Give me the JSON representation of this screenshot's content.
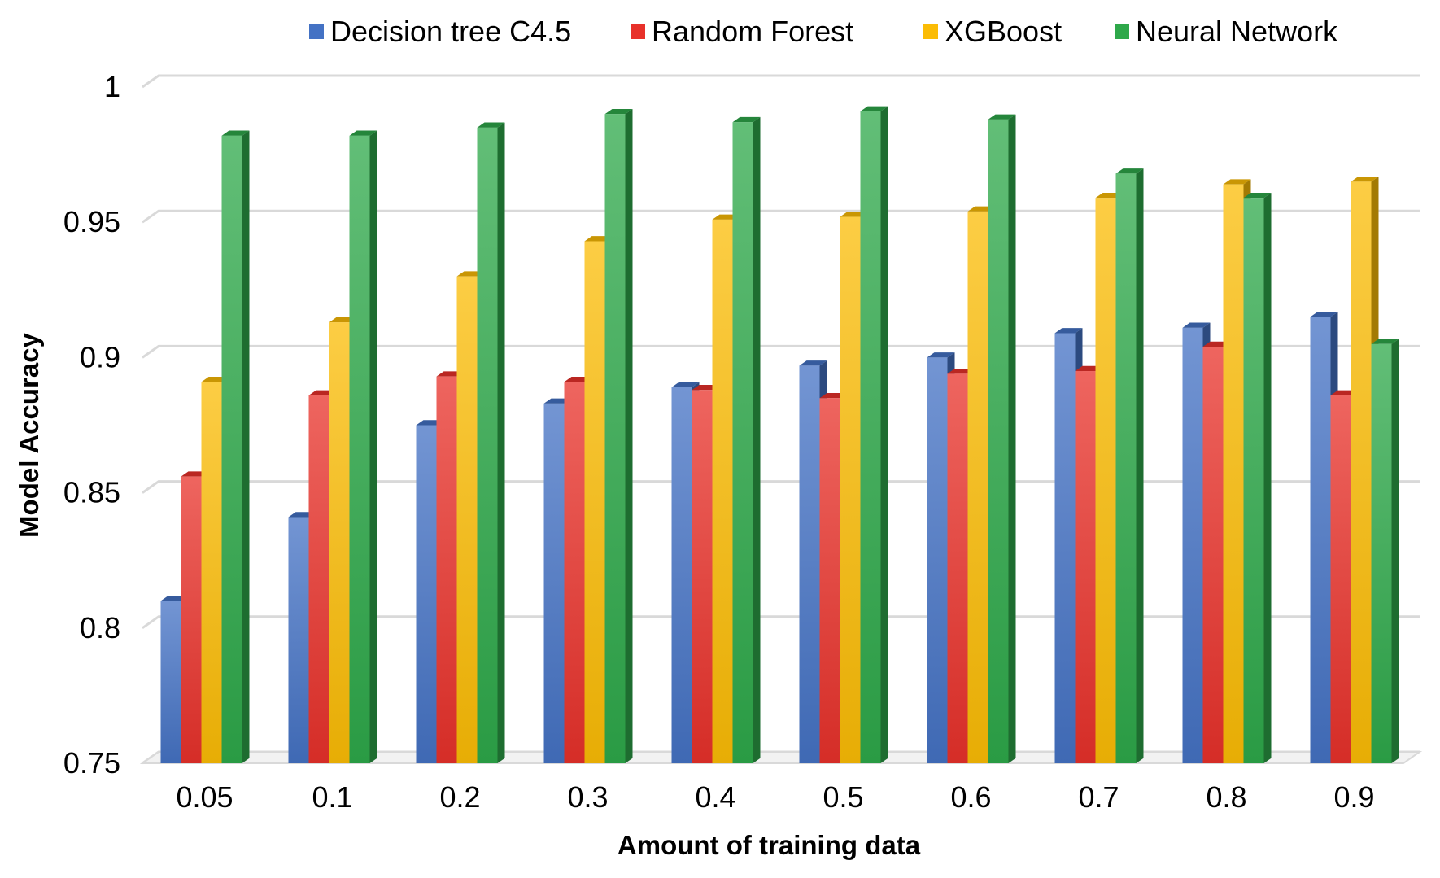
{
  "chart_data": {
    "type": "bar",
    "style": "3d-clustered-column",
    "xlabel": "Amount of training data",
    "ylabel": "Model Accuracy",
    "categories": [
      "0.05",
      "0.1",
      "0.2",
      "0.3",
      "0.4",
      "0.5",
      "0.6",
      "0.7",
      "0.8",
      "0.9"
    ],
    "ylim": [
      0.75,
      1
    ],
    "yticks": [
      "0.75",
      "0.8",
      "0.85",
      "0.9",
      "0.95",
      "1"
    ],
    "ytick_values": [
      0.75,
      0.8,
      0.85,
      0.9,
      0.95,
      1.0
    ],
    "grid": true,
    "legend_position": "top",
    "series": [
      {
        "name": "Decision tree C4.5",
        "color": "#4472C4",
        "values": [
          0.81,
          0.841,
          0.875,
          0.883,
          0.889,
          0.897,
          0.9,
          0.909,
          0.911,
          0.915
        ]
      },
      {
        "name": "Random Forest",
        "color": "#E8312A",
        "values": [
          0.856,
          0.886,
          0.893,
          0.891,
          0.888,
          0.885,
          0.894,
          0.895,
          0.904,
          0.886
        ]
      },
      {
        "name": "XGBoost",
        "color": "#FBBC05",
        "values": [
          0.891,
          0.913,
          0.93,
          0.943,
          0.951,
          0.952,
          0.954,
          0.959,
          0.964,
          0.965
        ]
      },
      {
        "name": "Neural Network",
        "color": "#2EA84A",
        "values": [
          0.982,
          0.982,
          0.985,
          0.99,
          0.987,
          0.991,
          0.988,
          0.968,
          0.959,
          0.905
        ]
      }
    ]
  }
}
